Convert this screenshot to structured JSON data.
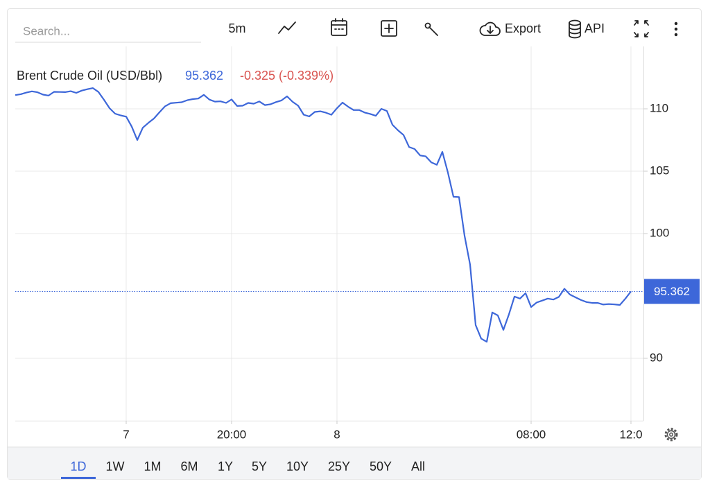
{
  "toolbar": {
    "search_placeholder": "Search...",
    "interval": "5m",
    "export": "Export",
    "api": "API"
  },
  "chart_data": {
    "type": "line",
    "title": "Brent Crude Oil (USD/Bbl)",
    "last_value": 95.362,
    "change": "-0.325 (-0.339%)",
    "color": "#3d67d9",
    "change_color": "#d9534f",
    "values": [
      111.1,
      111.17,
      111.3,
      111.4,
      111.33,
      111.14,
      111.06,
      111.36,
      111.35,
      111.34,
      111.41,
      111.28,
      111.46,
      111.57,
      111.66,
      111.35,
      110.72,
      110.05,
      109.61,
      109.47,
      109.37,
      108.57,
      107.5,
      108.49,
      108.87,
      109.22,
      109.72,
      110.2,
      110.45,
      110.49,
      110.53,
      110.69,
      110.78,
      110.82,
      111.12,
      110.74,
      110.58,
      110.6,
      110.47,
      110.75,
      110.23,
      110.25,
      110.47,
      110.41,
      110.59,
      110.3,
      110.36,
      110.54,
      110.67,
      111.0,
      110.56,
      110.25,
      109.53,
      109.39,
      109.75,
      109.8,
      109.69,
      109.52,
      110.05,
      110.5,
      110.17,
      109.9,
      109.9,
      109.7,
      109.59,
      109.44,
      110.0,
      109.83,
      108.72,
      108.28,
      107.9,
      106.94,
      106.78,
      106.26,
      106.19,
      105.71,
      105.51,
      106.55,
      104.89,
      102.95,
      102.92,
      99.83,
      97.5,
      92.66,
      91.58,
      91.32,
      93.68,
      93.44,
      92.28,
      93.52,
      94.95,
      94.79,
      95.22,
      94.11,
      94.47,
      94.63,
      94.79,
      94.71,
      94.92,
      95.58,
      95.11,
      94.89,
      94.67,
      94.51,
      94.44,
      94.44,
      94.31,
      94.35,
      94.32,
      94.28,
      94.79,
      95.36
    ],
    "xlim": [
      0,
      111
    ],
    "xticks": [
      {
        "value": 20,
        "label": "7"
      },
      {
        "value": 39,
        "label": "20:00"
      },
      {
        "value": 58,
        "label": "8"
      },
      {
        "value": 93,
        "label": "08:00"
      },
      {
        "value": 111,
        "label": "12:0"
      }
    ],
    "ylim": [
      85,
      115
    ],
    "yticks": [
      90,
      100,
      105,
      110
    ],
    "grid": true
  },
  "range": {
    "options": [
      "1D",
      "1W",
      "1M",
      "6M",
      "1Y",
      "5Y",
      "10Y",
      "25Y",
      "50Y",
      "All"
    ],
    "selected": 0
  }
}
